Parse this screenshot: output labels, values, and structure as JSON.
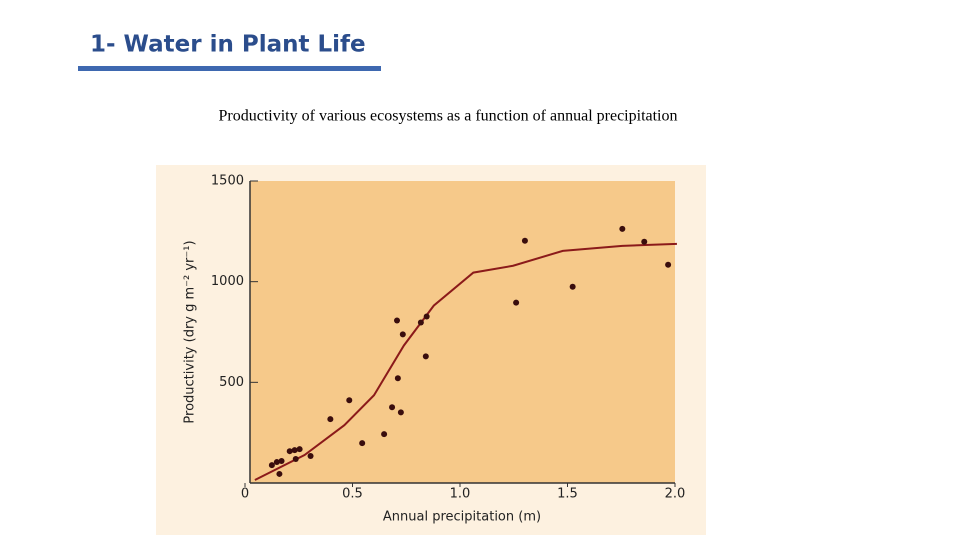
{
  "header": {
    "title": "1- Water in Plant Life"
  },
  "caption": "Productivity of various ecosystems as a function of annual precipitation",
  "chart_data": {
    "type": "scatter",
    "xlabel": "Annual precipitation (m)",
    "ylabel": "Productivity (dry g m⁻² yr⁻¹)",
    "xlim": [
      0,
      2
    ],
    "ylim": [
      0,
      1500
    ],
    "xticks": [
      0,
      0.5,
      {
        "value": 1,
        "label": "1.0"
      },
      1.5,
      {
        "value": 2,
        "label": "2.0"
      }
    ],
    "yticks": [
      500,
      1000,
      1500
    ],
    "points": {
      "color": "#3a0d0d",
      "x": [
        0.125,
        0.148,
        0.17,
        0.16,
        0.208,
        0.231,
        0.254,
        0.236,
        0.305,
        0.397,
        0.485,
        0.545,
        0.647,
        0.684,
        0.707,
        0.711,
        0.725,
        0.734,
        0.818,
        0.841,
        0.845,
        1.261,
        1.302,
        1.524,
        1.755,
        1.857,
        1.968
      ],
      "y": [
        89,
        104,
        109,
        45,
        158,
        163,
        168,
        119,
        134,
        317,
        411,
        198,
        243,
        376,
        807,
        520,
        351,
        738,
        797,
        629,
        827,
        896,
        1203,
        975,
        1262,
        1198,
        1084
      ]
    },
    "curve": {
      "color": "#8b1a1a",
      "x": [
        0.046,
        0.277,
        0.462,
        0.6,
        0.739,
        0.878,
        1.062,
        1.247,
        1.478,
        1.755,
        2.009
      ],
      "y": [
        15,
        139,
        287,
        436,
        683,
        881,
        1045,
        1079,
        1153,
        1178,
        1188
      ]
    }
  }
}
